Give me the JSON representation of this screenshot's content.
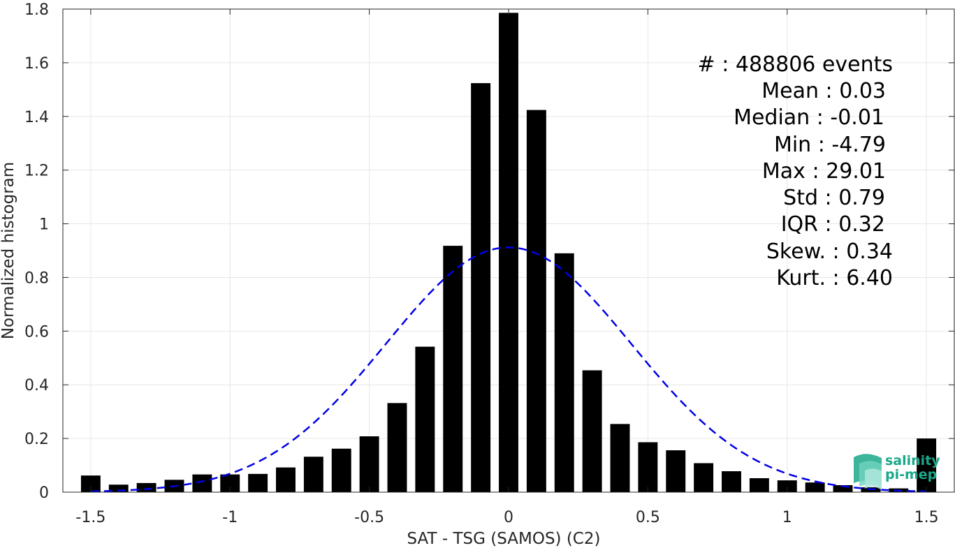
{
  "chart_data": {
    "type": "bar",
    "xlabel": "SAT - TSG (SAMOS) (C2)",
    "ylabel": "Normalized histogram",
    "xlim": [
      -1.6,
      1.6
    ],
    "ylim": [
      0,
      1.8
    ],
    "xticks": [
      "-1.5",
      "-1",
      "-0.5",
      "0",
      "0.5",
      "1",
      "1.5"
    ],
    "xtick_values": [
      -1.5,
      -1,
      -0.5,
      0,
      0.5,
      1,
      1.5
    ],
    "yticks": [
      "0",
      "0.2",
      "0.4",
      "0.6",
      "0.8",
      "1",
      "1.2",
      "1.4",
      "1.6",
      "1.8"
    ],
    "ytick_values": [
      0,
      0.2,
      0.4,
      0.6,
      0.8,
      1,
      1.2,
      1.4,
      1.6,
      1.8
    ],
    "grid": true,
    "bar_width": 0.07,
    "bar_color": "#000000",
    "fit_color": "#0000e6",
    "bins": [
      {
        "x": -1.5,
        "y": 0.062
      },
      {
        "x": -1.4,
        "y": 0.028
      },
      {
        "x": -1.3,
        "y": 0.034
      },
      {
        "x": -1.2,
        "y": 0.046
      },
      {
        "x": -1.1,
        "y": 0.066
      },
      {
        "x": -1.0,
        "y": 0.066
      },
      {
        "x": -0.9,
        "y": 0.068
      },
      {
        "x": -0.8,
        "y": 0.092
      },
      {
        "x": -0.7,
        "y": 0.132
      },
      {
        "x": -0.6,
        "y": 0.162
      },
      {
        "x": -0.5,
        "y": 0.208
      },
      {
        "x": -0.4,
        "y": 0.332
      },
      {
        "x": -0.3,
        "y": 0.542
      },
      {
        "x": -0.2,
        "y": 0.918
      },
      {
        "x": -0.1,
        "y": 1.524
      },
      {
        "x": 0.0,
        "y": 1.786
      },
      {
        "x": 0.1,
        "y": 1.424
      },
      {
        "x": 0.2,
        "y": 0.89
      },
      {
        "x": 0.3,
        "y": 0.454
      },
      {
        "x": 0.4,
        "y": 0.254
      },
      {
        "x": 0.5,
        "y": 0.186
      },
      {
        "x": 0.6,
        "y": 0.156
      },
      {
        "x": 0.7,
        "y": 0.108
      },
      {
        "x": 0.8,
        "y": 0.078
      },
      {
        "x": 0.9,
        "y": 0.052
      },
      {
        "x": 1.0,
        "y": 0.044
      },
      {
        "x": 1.1,
        "y": 0.036
      },
      {
        "x": 1.2,
        "y": 0.026
      },
      {
        "x": 1.3,
        "y": 0.018
      },
      {
        "x": 1.4,
        "y": 0.014
      },
      {
        "x": 1.5,
        "y": 0.2
      }
    ],
    "fit": {
      "type": "normal",
      "mean": 0.0,
      "std": 0.44,
      "peak": 0.912,
      "xrange": [
        -1.5,
        1.5
      ]
    },
    "stats": [
      "#  : 488806 events",
      "Mean : 0.03",
      "Median : -0.01",
      "Min : -4.79",
      "Max : 29.01",
      "Std : 0.79",
      "IQR : 0.32",
      "Skew. : 0.34",
      "Kurt. : 6.40"
    ]
  },
  "logo": {
    "line1": "salinity",
    "line2": "pi-mep",
    "color": "#1aa88a"
  }
}
